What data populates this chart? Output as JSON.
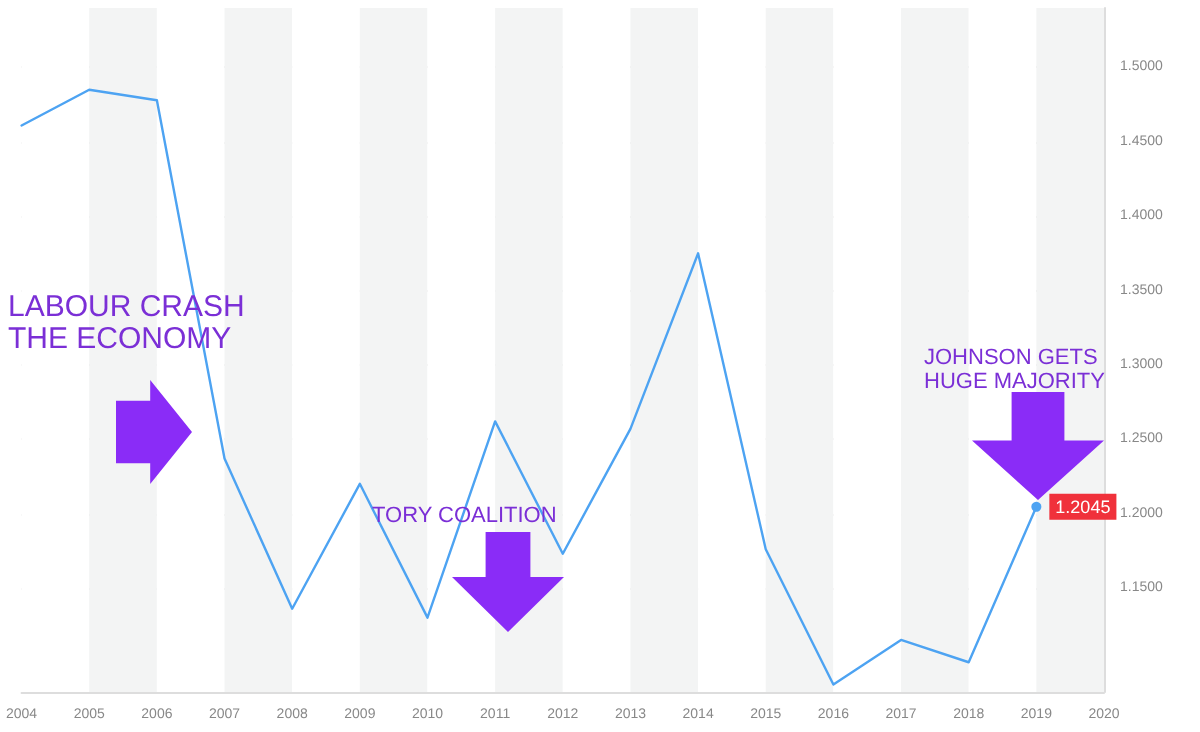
{
  "chart_data": {
    "type": "line",
    "x": [
      2004,
      2005,
      2006,
      2007,
      2008,
      2009,
      2010,
      2011,
      2012,
      2013,
      2014,
      2015,
      2016,
      2017,
      2018,
      2019
    ],
    "series": [
      {
        "color": "#4da3f2",
        "values": [
          1.461,
          1.485,
          1.478,
          1.237,
          1.136,
          1.22,
          1.13,
          1.262,
          1.173,
          1.257,
          1.375,
          1.176,
          1.085,
          1.115,
          1.1,
          1.2045
        ],
        "value_labels": [
          null,
          null,
          null,
          null,
          null,
          null,
          null,
          null,
          null,
          null,
          null,
          null,
          null,
          null,
          null,
          "1.2045"
        ]
      }
    ],
    "xlim": [
      2004,
      2020
    ],
    "xticks": [
      2004,
      2005,
      2006,
      2007,
      2008,
      2009,
      2010,
      2011,
      2012,
      2013,
      2014,
      2015,
      2016,
      2017,
      2018,
      2019,
      2020
    ],
    "ylim": [
      1.08,
      1.54
    ],
    "yticks": [
      {
        "value": 1.15,
        "label": "1.1500"
      },
      {
        "value": 1.2,
        "label": "1.2000"
      },
      {
        "value": 1.25,
        "label": "1.2500"
      },
      {
        "value": 1.3,
        "label": "1.3000"
      },
      {
        "value": 1.35,
        "label": "1.3500"
      },
      {
        "value": 1.4,
        "label": "1.4000"
      },
      {
        "value": 1.45,
        "label": "1.4500"
      },
      {
        "value": 1.5,
        "label": "1.5000"
      }
    ],
    "grid": "y",
    "marker": "none",
    "line_style": "solid",
    "annotations": [
      "LABOUR CRASH\nTHE ECONOMY",
      "TORY COALITION",
      "JOHNSON GETS\nHUGE MAJORITY"
    ]
  }
}
